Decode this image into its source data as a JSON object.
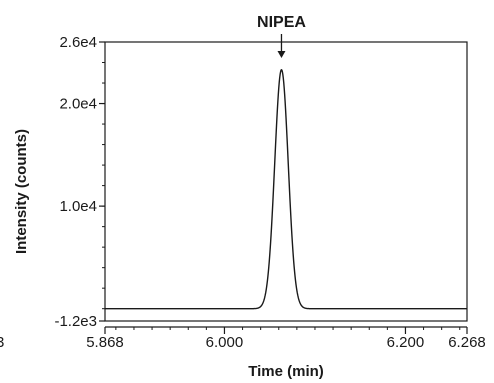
{
  "chart_data": {
    "type": "line",
    "title": "",
    "xlabel": "Time (min)",
    "ylabel": "Intensity (counts)",
    "xlim": [
      5.868,
      6.268
    ],
    "ylim": [
      -1200,
      26000
    ],
    "x_ticks": [
      {
        "value": 5.868,
        "label": "5.868"
      },
      {
        "value": 6.0,
        "label": "6.000"
      },
      {
        "value": 6.2,
        "label": "6.200"
      },
      {
        "value": 6.268,
        "label": "6.268"
      }
    ],
    "y_ticks": [
      {
        "value": -1200,
        "label": "-1.2e3"
      },
      {
        "value": 10000,
        "label": "1.0e4"
      },
      {
        "value": 20000,
        "label": "2.0e4"
      },
      {
        "value": 26000,
        "label": "2.6e4"
      }
    ],
    "y_minor_tick_step": 2000,
    "x_minor_tick_step": 0.02,
    "baseline": 0,
    "peak": {
      "retention_time": 6.063,
      "apex_intensity": 23300,
      "sigma_min": 0.0075
    },
    "annotation": {
      "label": "NIPEA",
      "x": 6.063
    },
    "stray_text": "3",
    "series": [
      {
        "x_start": 5.868,
        "x_end": 6.268,
        "color": "#1a1a1a"
      }
    ],
    "grid": false,
    "legend": "none"
  }
}
